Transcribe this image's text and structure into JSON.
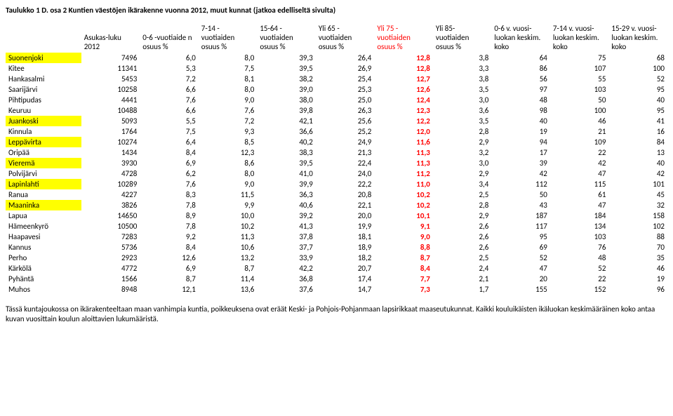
{
  "title": "Taulukko 1 D. osa 2 Kuntien väestöjen ikärakenne vuonna 2012, muut kunnat (jatkoa edelliseltä sivulta)",
  "headers": [
    "",
    "Asukas-luku 2012",
    "0-6 -vuotiaide n osuus %",
    "7-14 - vuotiaiden osuus %",
    "15-64 - vuotiaiden osuus %",
    "Yli 65 - vuotiaiden osuus %",
    "Yli 75 - vuotiaiden osuus %",
    "Yli 85- vuotiaiden osuus %",
    "0-6 v. vuosi-luokan keskim. koko",
    "7-14 v. vuosi-luokan keskim. koko",
    "15-29 v. vuosi-luokan keskim. koko"
  ],
  "redHeaderIndex": 6,
  "rows": [
    {
      "name": "Suonenjoki",
      "hl": true,
      "v": [
        7496,
        "6,0",
        "8,0",
        "39,3",
        "26,4",
        "12,8",
        "3,8",
        64,
        75,
        68
      ]
    },
    {
      "name": "Kitee",
      "hl": false,
      "v": [
        11341,
        "5,3",
        "7,5",
        "39,5",
        "26,9",
        "12,8",
        "3,3",
        86,
        107,
        100
      ]
    },
    {
      "name": "Hankasalmi",
      "hl": false,
      "v": [
        5453,
        "7,2",
        "8,1",
        "38,2",
        "25,4",
        "12,7",
        "3,8",
        56,
        55,
        52
      ]
    },
    {
      "name": "Saarijärvi",
      "hl": false,
      "v": [
        10258,
        "6,6",
        "8,0",
        "39,0",
        "25,3",
        "12,6",
        "3,5",
        97,
        103,
        95
      ]
    },
    {
      "name": "Pihtipudas",
      "hl": false,
      "v": [
        4441,
        "7,6",
        "9,0",
        "38,0",
        "25,0",
        "12,4",
        "3,0",
        48,
        50,
        40
      ]
    },
    {
      "name": "Keuruu",
      "hl": false,
      "v": [
        10488,
        "6,6",
        "7,6",
        "39,8",
        "26,3",
        "12,3",
        "3,6",
        98,
        100,
        95
      ]
    },
    {
      "name": "Juankoski",
      "hl": true,
      "v": [
        5093,
        "5,5",
        "7,2",
        "42,1",
        "25,6",
        "12,2",
        "3,5",
        40,
        46,
        41
      ]
    },
    {
      "name": "Kinnula",
      "hl": false,
      "v": [
        1764,
        "7,5",
        "9,3",
        "36,6",
        "25,2",
        "12,0",
        "2,8",
        19,
        21,
        16
      ]
    },
    {
      "name": "Leppävirta",
      "hl": true,
      "v": [
        10274,
        "6,4",
        "8,5",
        "40,2",
        "24,9",
        "11,6",
        "2,9",
        94,
        109,
        84
      ]
    },
    {
      "name": "Oripää",
      "hl": false,
      "v": [
        1434,
        "8,4",
        "12,3",
        "38,3",
        "21,3",
        "11,3",
        "3,2",
        17,
        22,
        13
      ]
    },
    {
      "name": "Vieremä",
      "hl": true,
      "v": [
        3930,
        "6,9",
        "8,6",
        "39,5",
        "22,4",
        "11,3",
        "3,0",
        39,
        42,
        40
      ]
    },
    {
      "name": "Polvijärvi",
      "hl": false,
      "v": [
        4728,
        "6,2",
        "8,0",
        "41,0",
        "24,0",
        "11,2",
        "2,9",
        42,
        47,
        42
      ]
    },
    {
      "name": "Lapinlahti",
      "hl": true,
      "v": [
        10289,
        "7,6",
        "9,0",
        "39,9",
        "22,2",
        "11,0",
        "3,4",
        112,
        115,
        101
      ]
    },
    {
      "name": "Ranua",
      "hl": false,
      "v": [
        4227,
        "8,3",
        "11,5",
        "36,3",
        "20,8",
        "10,2",
        "2,5",
        50,
        61,
        45
      ]
    },
    {
      "name": "Maaninka",
      "hl": true,
      "v": [
        3826,
        "7,8",
        "9,9",
        "40,6",
        "22,1",
        "10,2",
        "2,8",
        43,
        47,
        32
      ]
    },
    {
      "name": "Lapua",
      "hl": false,
      "v": [
        14650,
        "8,9",
        "10,0",
        "39,2",
        "20,0",
        "10,1",
        "2,9",
        187,
        184,
        158
      ]
    },
    {
      "name": "Hämeenkyrö",
      "hl": false,
      "v": [
        10500,
        "7,8",
        "10,2",
        "41,3",
        "19,9",
        "9,1",
        "2,6",
        117,
        134,
        102
      ]
    },
    {
      "name": "Haapavesi",
      "hl": false,
      "v": [
        7283,
        "9,2",
        "11,3",
        "37,8",
        "18,1",
        "9,0",
        "2,6",
        95,
        103,
        88
      ]
    },
    {
      "name": "Kannus",
      "hl": false,
      "v": [
        5736,
        "8,4",
        "10,6",
        "37,7",
        "18,9",
        "8,8",
        "2,6",
        69,
        76,
        70
      ]
    },
    {
      "name": "Perho",
      "hl": false,
      "v": [
        2923,
        "12,6",
        "13,2",
        "33,9",
        "18,2",
        "8,7",
        "2,5",
        52,
        48,
        35
      ]
    },
    {
      "name": "Kärkölä",
      "hl": false,
      "v": [
        4772,
        "6,9",
        "8,7",
        "42,2",
        "20,7",
        "8,4",
        "2,4",
        47,
        52,
        46
      ]
    },
    {
      "name": "Pyhäntä",
      "hl": false,
      "v": [
        1566,
        "8,7",
        "11,4",
        "36,8",
        "17,4",
        "7,7",
        "2,1",
        20,
        22,
        19
      ]
    },
    {
      "name": "Muhos",
      "hl": false,
      "v": [
        8948,
        "12,1",
        "13,6",
        "37,6",
        "14,7",
        "7,3",
        "1,7",
        155,
        152,
        96
      ]
    }
  ],
  "redColIndex": 5,
  "footer": "Tässä kuntajoukossa on ikärakenteeltaan maan vanhimpia kuntia, poikkeuksena ovat eräät Keski- ja Pohjois-Pohjanmaan lapsirikkaat maaseutukunnat. Kaikki kouluikäisten ikäluokan keskimääräinen koko antaa kuvan vuosittain koulun aloittavien lukumääristä."
}
